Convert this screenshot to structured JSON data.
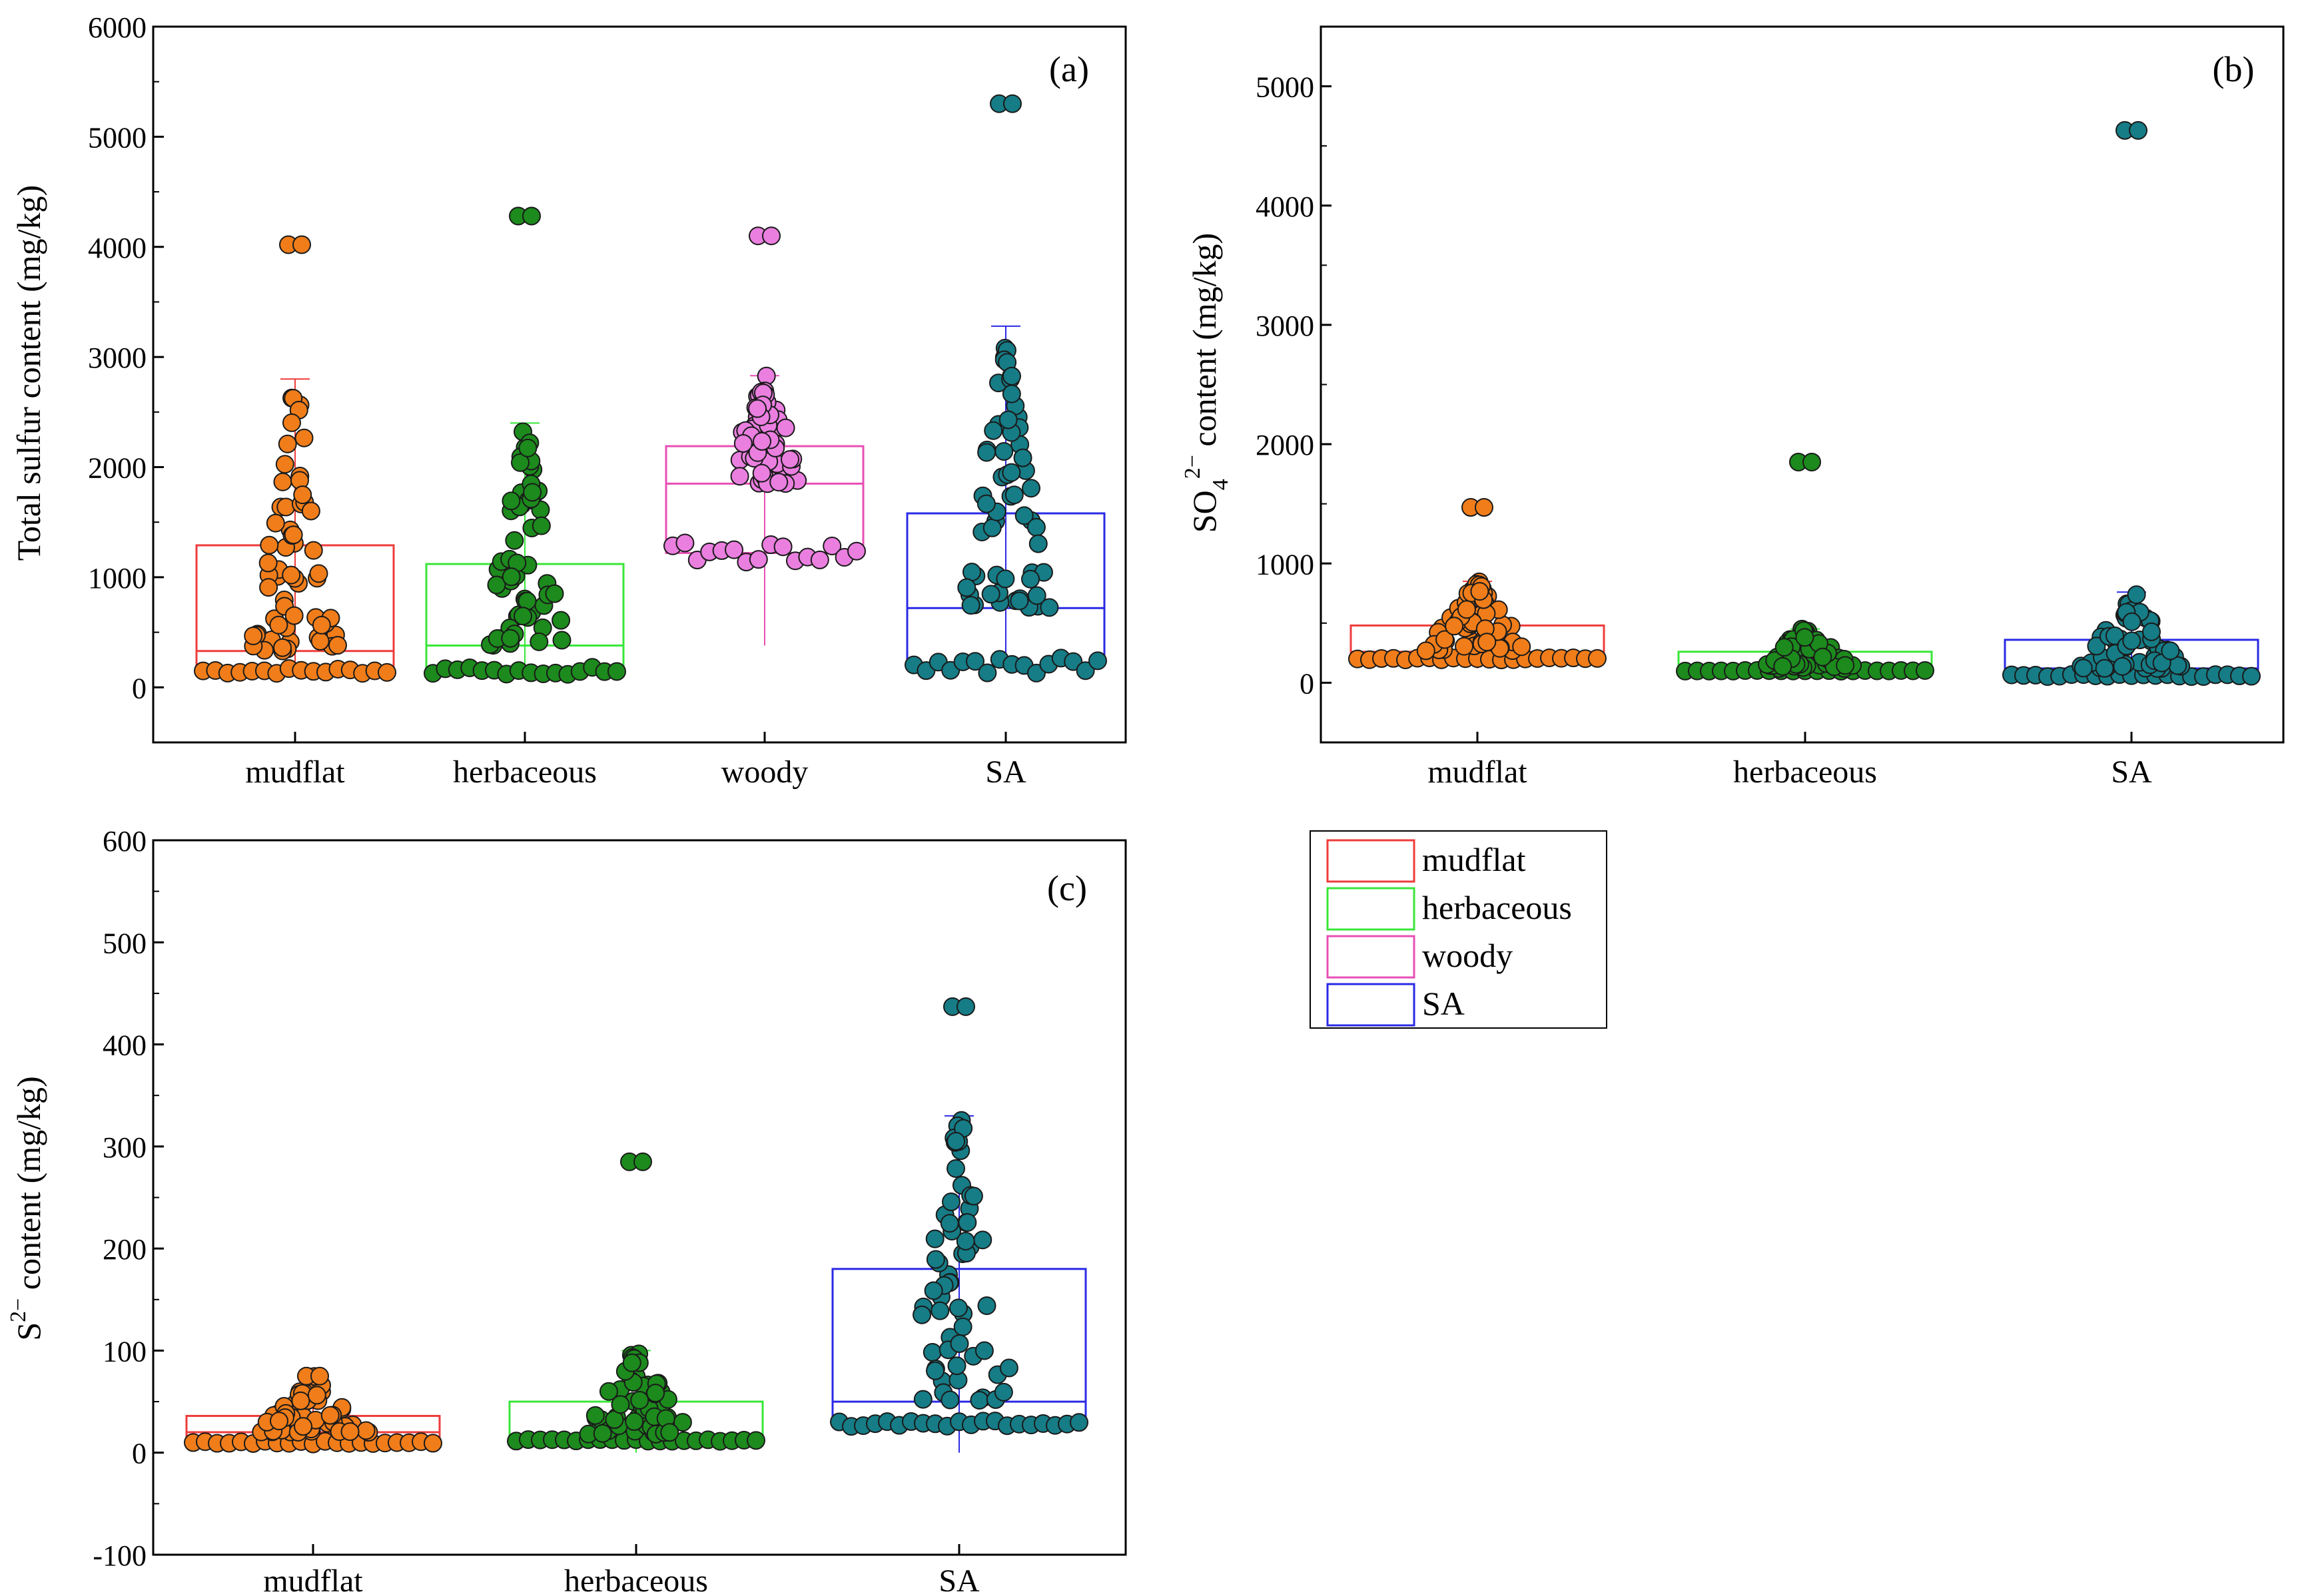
{
  "legend": {
    "entries": [
      {
        "label": "mudflat",
        "color": "#ef3b3b"
      },
      {
        "label": "herbaceous",
        "color": "#39e639"
      },
      {
        "label": "woody",
        "color": "#e84fb5"
      },
      {
        "label": "SA",
        "color": "#2a2ae6"
      }
    ]
  },
  "point_colors": {
    "mudflat": "#f07d1a",
    "herbaceous": "#1c8a1c",
    "woody": "#ea7fe0",
    "SA": "#167c86"
  },
  "chart_data": [
    {
      "type": "box",
      "panel_label": "(a)",
      "ylabel": "Total sulfur content (mg/kg)",
      "xlabel": "",
      "categories": [
        "mudflat",
        "herbaceous",
        "woody",
        "SA"
      ],
      "yticks": [
        0,
        1000,
        2000,
        3000,
        4000,
        5000,
        6000
      ],
      "ylim": [
        -500,
        6000
      ],
      "boxes": [
        {
          "q1": 150,
          "median": 330,
          "q3": 1290,
          "whisker_low": 150,
          "whisker_high": 2800,
          "max": 4020
        },
        {
          "q1": 150,
          "median": 380,
          "q3": 1120,
          "whisker_low": 150,
          "whisker_high": 2400,
          "max": 4280
        },
        {
          "q1": 1220,
          "median": 1850,
          "q3": 2190,
          "whisker_low": 380,
          "whisker_high": 2830,
          "max": 4100
        },
        {
          "q1": 200,
          "median": 720,
          "q3": 1580,
          "whisker_low": 200,
          "whisker_high": 3280,
          "max": 5300
        }
      ]
    },
    {
      "type": "box",
      "panel_label": "(b)",
      "ylabel": "SO42− content (mg/kg)",
      "xlabel": "",
      "categories": [
        "mudflat",
        "herbaceous",
        "SA"
      ],
      "yticks": [
        0,
        1000,
        2000,
        3000,
        4000,
        5000
      ],
      "ylim": [
        -500,
        5500
      ],
      "boxes": [
        {
          "q1": 200,
          "median": 260,
          "q3": 480,
          "whisker_low": 120,
          "whisker_high": 850,
          "max": 1470
        },
        {
          "q1": 100,
          "median": 120,
          "q3": 260,
          "whisker_low": 80,
          "whisker_high": 450,
          "max": 1850
        },
        {
          "q1": 60,
          "median": 120,
          "q3": 360,
          "whisker_low": 50,
          "whisker_high": 760,
          "max": 4630
        }
      ]
    },
    {
      "type": "box",
      "panel_label": "(c)",
      "ylabel": "S2− content (mg/kg)",
      "xlabel": "",
      "categories": [
        "mudflat",
        "herbaceous",
        "SA"
      ],
      "yticks": [
        -100,
        0,
        100,
        200,
        300,
        400,
        500,
        600
      ],
      "ylim": [
        -100,
        600
      ],
      "boxes": [
        {
          "q1": 10,
          "median": 20,
          "q3": 36,
          "whisker_low": 0,
          "whisker_high": 75,
          "max": 75
        },
        {
          "q1": 12,
          "median": 18,
          "q3": 50,
          "whisker_low": 0,
          "whisker_high": 100,
          "max": 285
        },
        {
          "q1": 28,
          "median": 50,
          "q3": 180,
          "whisker_low": 0,
          "whisker_high": 330,
          "max": 437
        }
      ]
    }
  ]
}
